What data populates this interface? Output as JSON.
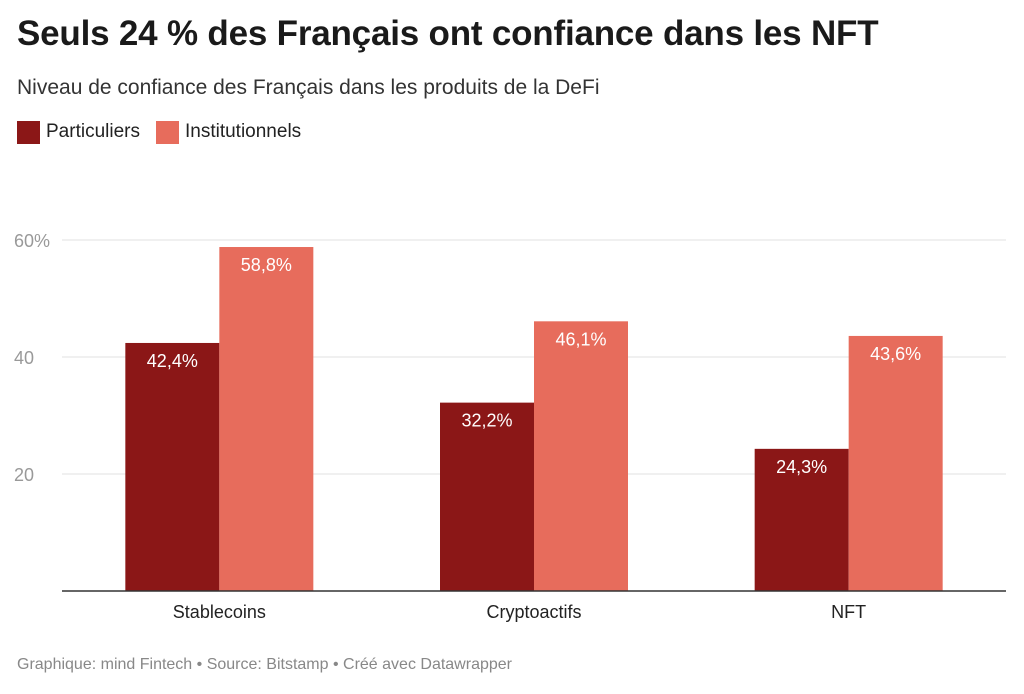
{
  "header": {
    "title": "Seuls 24 % des Français ont confiance dans les NFT",
    "subtitle": "Niveau de confiance des Français dans les produits de la DeFi"
  },
  "footer": {
    "text": "Graphique: mind Fintech • Source: Bitstamp • Créé avec Datawrapper"
  },
  "chart_data": {
    "type": "bar",
    "categories": [
      "Stablecoins",
      "Cryptoactifs",
      "NFT"
    ],
    "series": [
      {
        "name": "Particuliers",
        "color": "#8b1717",
        "values": [
          42.4,
          32.2,
          24.3
        ],
        "labels": [
          "42,4%",
          "32,2%",
          "24,3%"
        ]
      },
      {
        "name": "Institutionnels",
        "color": "#e76c5c",
        "values": [
          58.8,
          46.1,
          43.6
        ],
        "labels": [
          "58,8%",
          "46,1%",
          "43,6%"
        ]
      }
    ],
    "ylim": [
      0,
      60
    ],
    "yticks": [
      {
        "value": 20,
        "label": "20"
      },
      {
        "value": 40,
        "label": "40"
      },
      {
        "value": 60,
        "label": "60%"
      }
    ],
    "grid": true,
    "legend": "top-left",
    "xlabel": "",
    "ylabel": ""
  }
}
